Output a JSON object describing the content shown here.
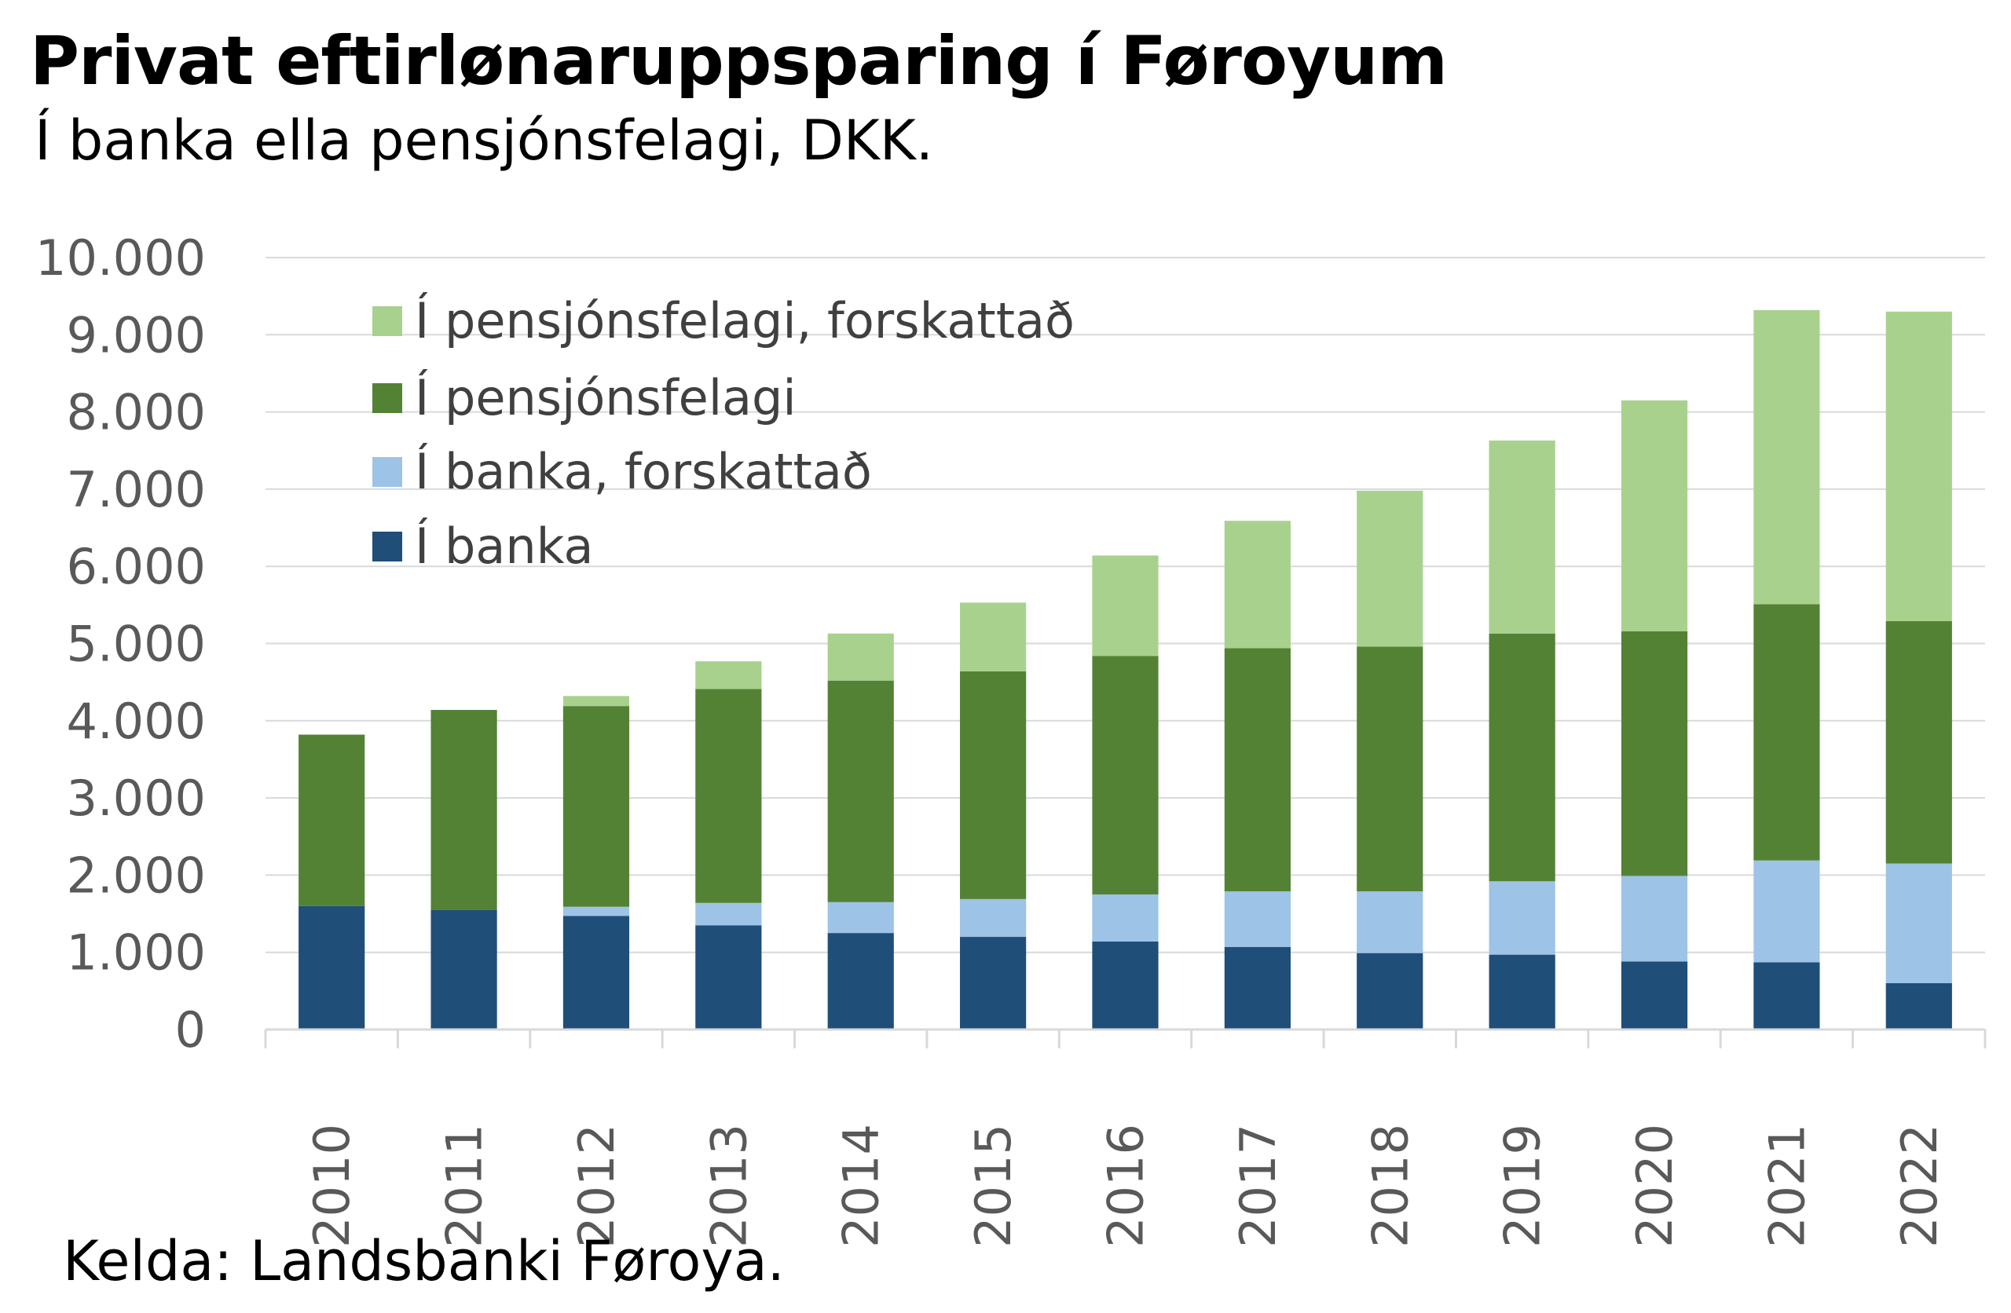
{
  "chart_data": {
    "type": "bar",
    "stacked": true,
    "title": "Privat eftirlønaruppsparing í Føroyum",
    "subtitle": "Í banka ella pensjónsfelagi, DKK.",
    "source": "Kelda: Landsbanki Føroya.",
    "xlabel": "",
    "ylabel": "",
    "ylim": [
      0,
      10000
    ],
    "yticks": [
      "0",
      "1.000",
      "2.000",
      "3.000",
      "4.000",
      "5.000",
      "6.000",
      "7.000",
      "8.000",
      "9.000",
      "10.000"
    ],
    "grid": true,
    "legend_position": "top-left",
    "categories": [
      "2010",
      "2011",
      "2012",
      "2013",
      "2014",
      "2015",
      "2016",
      "2017",
      "2018",
      "2019",
      "2020",
      "2021",
      "2022"
    ],
    "series": [
      {
        "name": "Í banka",
        "color": "#1f4e79",
        "values": [
          1600,
          1550,
          1470,
          1350,
          1250,
          1200,
          1140,
          1070,
          990,
          970,
          880,
          870,
          600
        ]
      },
      {
        "name": "Í banka, forskattað",
        "color": "#9dc3e6",
        "values": [
          0,
          0,
          120,
          290,
          400,
          490,
          610,
          720,
          800,
          950,
          1110,
          1320,
          1550
        ]
      },
      {
        "name": "Í pensjónsfelagi",
        "color": "#548235",
        "values": [
          2220,
          2590,
          2600,
          2770,
          2870,
          2950,
          3090,
          3150,
          3170,
          3210,
          3170,
          3320,
          3140
        ]
      },
      {
        "name": "Í pensjónsfelagi, forskattað",
        "color": "#a9d18e",
        "values": [
          0,
          0,
          130,
          360,
          610,
          890,
          1300,
          1650,
          2020,
          2500,
          2990,
          3810,
          4010
        ]
      }
    ]
  }
}
